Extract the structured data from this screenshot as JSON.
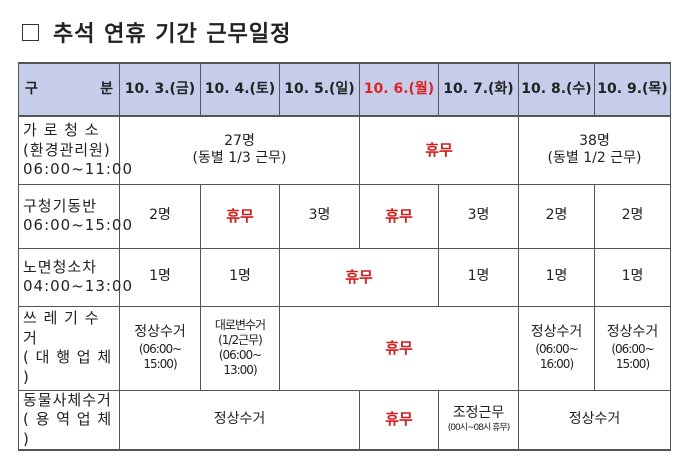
{
  "title": "추석 연휴 기간 근무일정",
  "header": {
    "category_left": "구",
    "category_right": "분",
    "dates": [
      "10. 3.(금)",
      "10. 4.(토)",
      "10. 5.(일)",
      "10. 6.(월)",
      "10. 7.(화)",
      "10. 8.(수)",
      "10. 9.(목)"
    ]
  },
  "colors": {
    "holiday": "#d21d1d",
    "header_bg": "#c6cdea"
  },
  "rows": [
    {
      "category": [
        "가 로 청 소",
        "(환경관리원)",
        "06:00~11:00"
      ],
      "cells": [
        {
          "l1": "27명",
          "l2": "(동별 1/3 근무)"
        },
        {
          "text": "휴무"
        },
        {
          "l1": "38명",
          "l2": "(동별 1/2 근무)"
        }
      ]
    },
    {
      "category": [
        "구청기동반",
        "06:00~15:00"
      ],
      "cells": [
        "2명",
        "휴무",
        "3명",
        "휴무",
        "3명",
        "2명",
        "2명"
      ]
    },
    {
      "category": [
        "노면청소차",
        "04:00~13:00"
      ],
      "cells": [
        "1명",
        "1명",
        "휴무",
        "1명",
        "1명",
        "1명"
      ]
    },
    {
      "category": [
        "쓰 레 기 수 거",
        "( 대 행 업 체 )"
      ],
      "cells": [
        {
          "l1": "정상수거",
          "l2": "(06:00~",
          "l3": "15:00)"
        },
        {
          "l1": "대로변수거",
          "l2": "(1/2근무)",
          "l3": "(06:00~",
          "l4": "13:00)"
        },
        {
          "text": "휴무"
        },
        {
          "l1": "정상수거",
          "l2": "(06:00~",
          "l3": "16:00)"
        },
        {
          "l1": "정상수거",
          "l2": "(06:00~",
          "l3": "15:00)"
        }
      ]
    },
    {
      "category": [
        "동물사체수거",
        "( 용 역 업 체 )"
      ],
      "cells": [
        {
          "text": "정상수거"
        },
        {
          "text": "휴무"
        },
        {
          "l1": "조정근무",
          "l2": "(00시~08시 휴무)"
        },
        {
          "text": "정상수거"
        }
      ]
    }
  ]
}
